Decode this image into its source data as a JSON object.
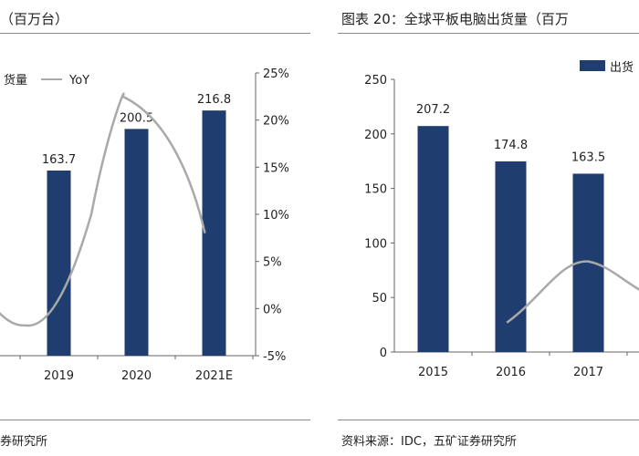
{
  "left": {
    "title": "（百万台）",
    "source": "券研究所",
    "legend": {
      "bar_label": "货量",
      "line_label": "YoY"
    },
    "colors": {
      "bar": "#1f3d6e",
      "line": "#a9a9a9"
    },
    "chart_data": {
      "type": "bar",
      "categories": [
        "2019",
        "2020",
        "2021E"
      ],
      "values": [
        163.7,
        200.5,
        216.8
      ],
      "value_labels": [
        "163.7",
        "200.5",
        "216.8"
      ],
      "series": [
        {
          "name": "货量",
          "type": "bar",
          "values": [
            163.7,
            200.5,
            216.8
          ]
        },
        {
          "name": "YoY",
          "type": "line",
          "values": [
            -2.0,
            22.5,
            8.0
          ]
        }
      ],
      "y2_ticks": [
        "25%",
        "20%",
        "15%",
        "10%",
        "5%",
        "0%",
        "-5%"
      ],
      "y2lim": [
        -5,
        25
      ],
      "xlabel": "",
      "ylabel": "",
      "grid": false,
      "legend_position": "top"
    }
  },
  "right": {
    "title": "图表 20：全球平板电脑出货量（百万",
    "source": "资料来源：IDC，五矿证券研究所",
    "legend": {
      "bar_label": "出货"
    },
    "colors": {
      "bar": "#1f3d6e",
      "line": "#a9a9a9"
    },
    "chart_data": {
      "type": "bar",
      "categories": [
        "2015",
        "2016",
        "2017"
      ],
      "values": [
        207.2,
        174.8,
        163.5
      ],
      "value_labels": [
        "207.2",
        "174.8",
        "163.5"
      ],
      "series": [
        {
          "name": "出货",
          "type": "bar",
          "values": [
            207.2,
            174.8,
            163.5
          ]
        }
      ],
      "y_ticks": [
        "250",
        "200",
        "150",
        "100",
        "50",
        "0"
      ],
      "ylim": [
        0,
        250
      ],
      "xlabel": "",
      "ylabel": "",
      "grid": false,
      "legend_position": "top-right"
    }
  }
}
